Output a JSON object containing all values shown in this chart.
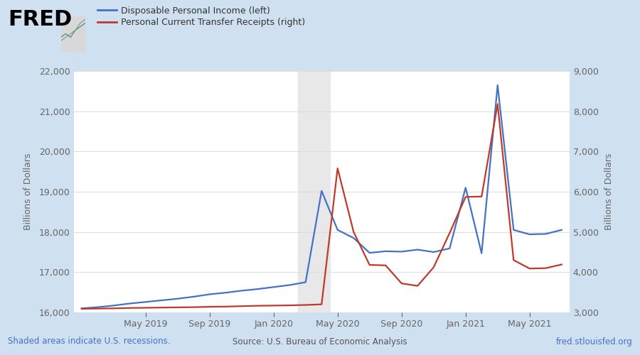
{
  "background_color": "#cfe0f0",
  "plot_background_color": "#ffffff",
  "recession_color": "#e8e8e8",
  "dates_numeric": [
    0,
    1,
    2,
    3,
    4,
    5,
    6,
    7,
    8,
    9,
    10,
    11,
    12,
    13,
    14,
    15,
    16,
    17,
    18,
    19,
    20,
    21,
    22,
    23,
    24,
    25,
    26,
    27,
    28,
    29,
    30
  ],
  "dpi_left": [
    16100,
    16130,
    16170,
    16220,
    16260,
    16300,
    16340,
    16390,
    16450,
    16490,
    16540,
    16580,
    16630,
    16680,
    16750,
    19020,
    18050,
    17850,
    17480,
    17520,
    17510,
    17560,
    17500,
    17590,
    19100,
    17470,
    21650,
    18050,
    17940,
    17950,
    18050
  ],
  "pctr_right": [
    3090,
    3095,
    3100,
    3110,
    3115,
    3120,
    3125,
    3130,
    3140,
    3145,
    3155,
    3165,
    3170,
    3175,
    3185,
    3200,
    6580,
    5000,
    4180,
    4170,
    3720,
    3660,
    4120,
    4970,
    5870,
    5880,
    8180,
    4300,
    4090,
    4100,
    4190
  ],
  "recession_xstart": 13.5,
  "recession_xend": 15.5,
  "x_tick_labels": [
    "May 2019",
    "Sep 2019",
    "Jan 2020",
    "May 2020",
    "Sep 2020",
    "Jan 2021",
    "May 2021"
  ],
  "x_tick_positions": [
    4,
    8,
    12,
    16,
    20,
    24,
    28
  ],
  "left_ylim": [
    16000,
    22000
  ],
  "right_ylim": [
    3000,
    9000
  ],
  "left_yticks": [
    16000,
    17000,
    18000,
    19000,
    20000,
    21000,
    22000
  ],
  "right_yticks": [
    3000,
    4000,
    5000,
    6000,
    7000,
    8000,
    9000
  ],
  "left_ylabel": "Billions of Dollars",
  "right_ylabel": "Billions of Dollars",
  "line_blue_color": "#4472c4",
  "line_red_color": "#c0392b",
  "legend_label_blue": "Disposable Personal Income (left)",
  "legend_label_red": "Personal Current Transfer Receipts (right)",
  "footer_left": "Shaded areas indicate U.S. recessions.",
  "footer_center": "Source: U.S. Bureau of Economic Analysis",
  "footer_right": "fred.stlouisfed.org",
  "fred_text": "FRED",
  "footer_blue_color": "#4472c4",
  "tick_color": "#666666",
  "grid_color": "#dddddd"
}
